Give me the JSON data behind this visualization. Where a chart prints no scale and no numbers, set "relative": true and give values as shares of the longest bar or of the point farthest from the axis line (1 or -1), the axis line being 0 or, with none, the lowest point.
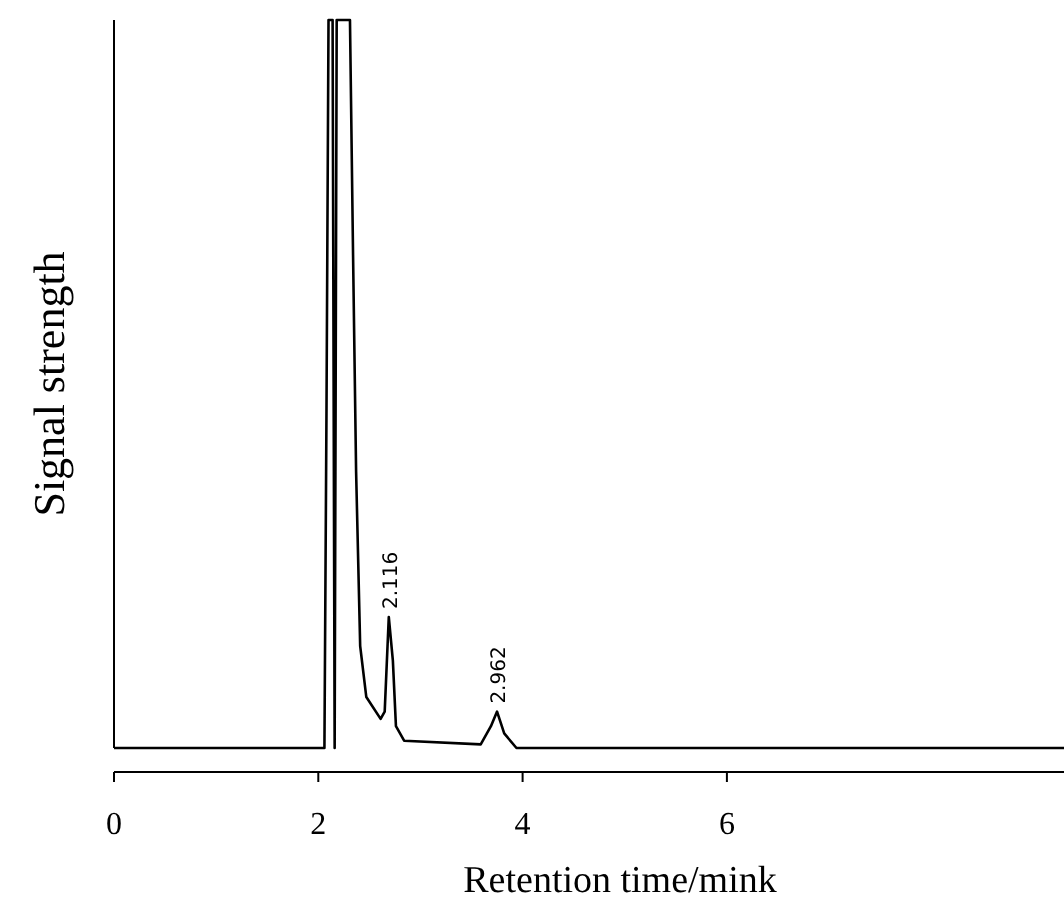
{
  "chart_data": {
    "type": "line",
    "xlabel": "Retention time/mink",
    "ylabel": "Signal strength",
    "relative": true,
    "xlim": [
      0,
      9.3
    ],
    "xticks": [
      0,
      2,
      4,
      6
    ],
    "x": [
      0,
      2.06,
      2.08,
      2.1,
      2.14,
      2.16,
      2.18,
      2.31,
      2.34,
      2.37,
      2.41,
      2.47,
      2.61,
      2.65,
      2.69,
      2.73,
      2.76,
      2.84,
      3.59,
      3.69,
      3.75,
      3.82,
      3.94,
      9.3
    ],
    "series": [
      {
        "color": "#000000",
        "values": [
          0,
          0,
          0.46,
          1,
          1,
          0,
          1,
          1,
          0.68,
          0.38,
          0.14,
          0.07,
          0.04,
          0.05,
          0.18,
          0.12,
          0.03,
          0.01,
          0.005,
          0.03,
          0.05,
          0.02,
          0,
          0
        ]
      }
    ],
    "annotations": [
      {
        "text": "2.116",
        "x": 2.69,
        "y": 0.18
      },
      {
        "text": "2.962",
        "x": 3.75,
        "y": 0.05
      }
    ],
    "grid": false
  }
}
